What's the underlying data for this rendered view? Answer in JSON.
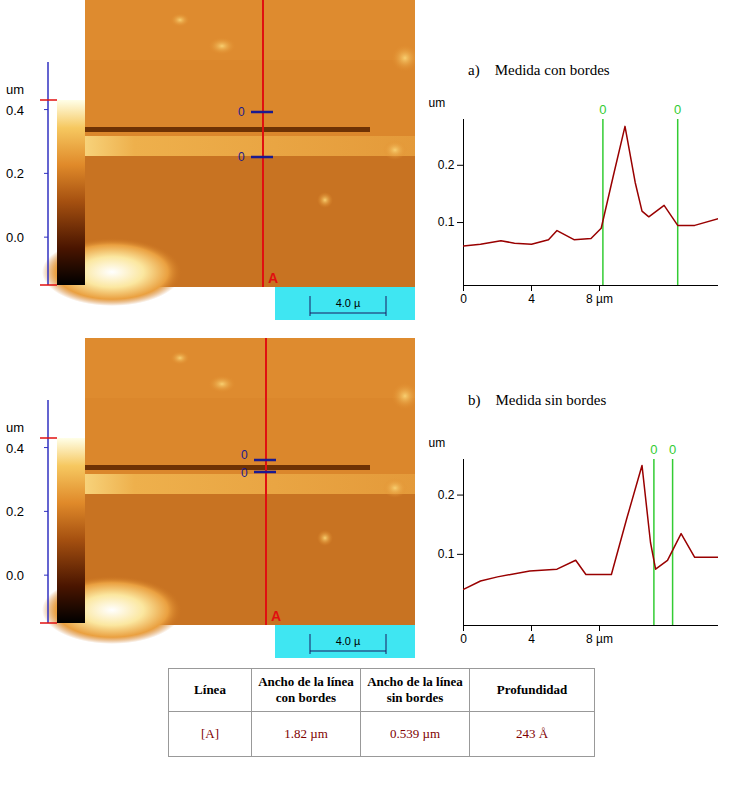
{
  "chart_data": [
    {
      "type": "line",
      "label": "a)",
      "title": "Medida con bordes",
      "color": "#990000",
      "x": [
        0,
        1,
        2.2,
        3,
        4,
        5,
        5.5,
        6.5,
        7.5,
        8.1,
        8.8,
        9.5,
        10.1,
        10.5,
        10.9,
        11.8,
        12.6,
        13.6,
        15
      ],
      "values": [
        0.059,
        0.062,
        0.068,
        0.064,
        0.062,
        0.07,
        0.086,
        0.07,
        0.072,
        0.09,
        0.18,
        0.268,
        0.17,
        0.12,
        0.11,
        0.13,
        0.095,
        0.095,
        0.107
      ],
      "xlim": [
        0,
        15
      ],
      "ylim": [
        -0.01,
        0.28
      ],
      "xticks": [
        0,
        4,
        {
          "value": 8,
          "label": "8 µm"
        }
      ],
      "yticks": [
        0.1,
        0.2
      ],
      "y_label": "um",
      "cursors": [
        8.2,
        12.6
      ],
      "cursor_labels": [
        "0",
        "0"
      ]
    },
    {
      "type": "line",
      "label": "b)",
      "title": "Medida sin bordes",
      "color": "#990000",
      "x": [
        0,
        1,
        2,
        3.9,
        5.5,
        6.6,
        7.2,
        8.7,
        9.6,
        10.5,
        11,
        11.3,
        12,
        12.8,
        13.6,
        15
      ],
      "values": [
        0.041,
        0.055,
        0.062,
        0.072,
        0.075,
        0.09,
        0.066,
        0.066,
        0.16,
        0.25,
        0.12,
        0.075,
        0.09,
        0.135,
        0.095,
        0.095
      ],
      "xlim": [
        0,
        15
      ],
      "ylim": [
        -0.02,
        0.26
      ],
      "xticks": [
        0,
        4,
        {
          "value": 8,
          "label": "8 µm"
        }
      ],
      "yticks": [
        0.1,
        0.2
      ],
      "y_label": "um",
      "cursors": [
        11.2,
        12.3
      ],
      "cursor_labels": [
        "0",
        "0"
      ]
    }
  ],
  "images": [
    {
      "colorbar": {
        "label": "um",
        "range": [
          -0.15,
          0.43
        ],
        "ticks": [
          0.4,
          0.2,
          {
            "value": 0,
            "label": "0.0"
          }
        ]
      },
      "cursor_labels": [
        "0",
        "0"
      ],
      "line_label": "A",
      "scale_bar": "4.0 µ"
    },
    {
      "colorbar": {
        "label": "um",
        "range": [
          -0.15,
          0.43
        ],
        "ticks": [
          0.4,
          0.2,
          {
            "value": 0,
            "label": "0.0"
          }
        ]
      },
      "cursor_labels": [
        "0",
        "0"
      ],
      "line_label": "A",
      "scale_bar": "4.0 µ"
    }
  ],
  "table": {
    "header": [
      "Línea",
      "Ancho de la línea con bordes",
      "Ancho de la línea sin bordes",
      "Profundidad"
    ],
    "rows": [
      [
        "[A]",
        "1.82 µm",
        "0.539 µm",
        "243 Å"
      ]
    ]
  }
}
